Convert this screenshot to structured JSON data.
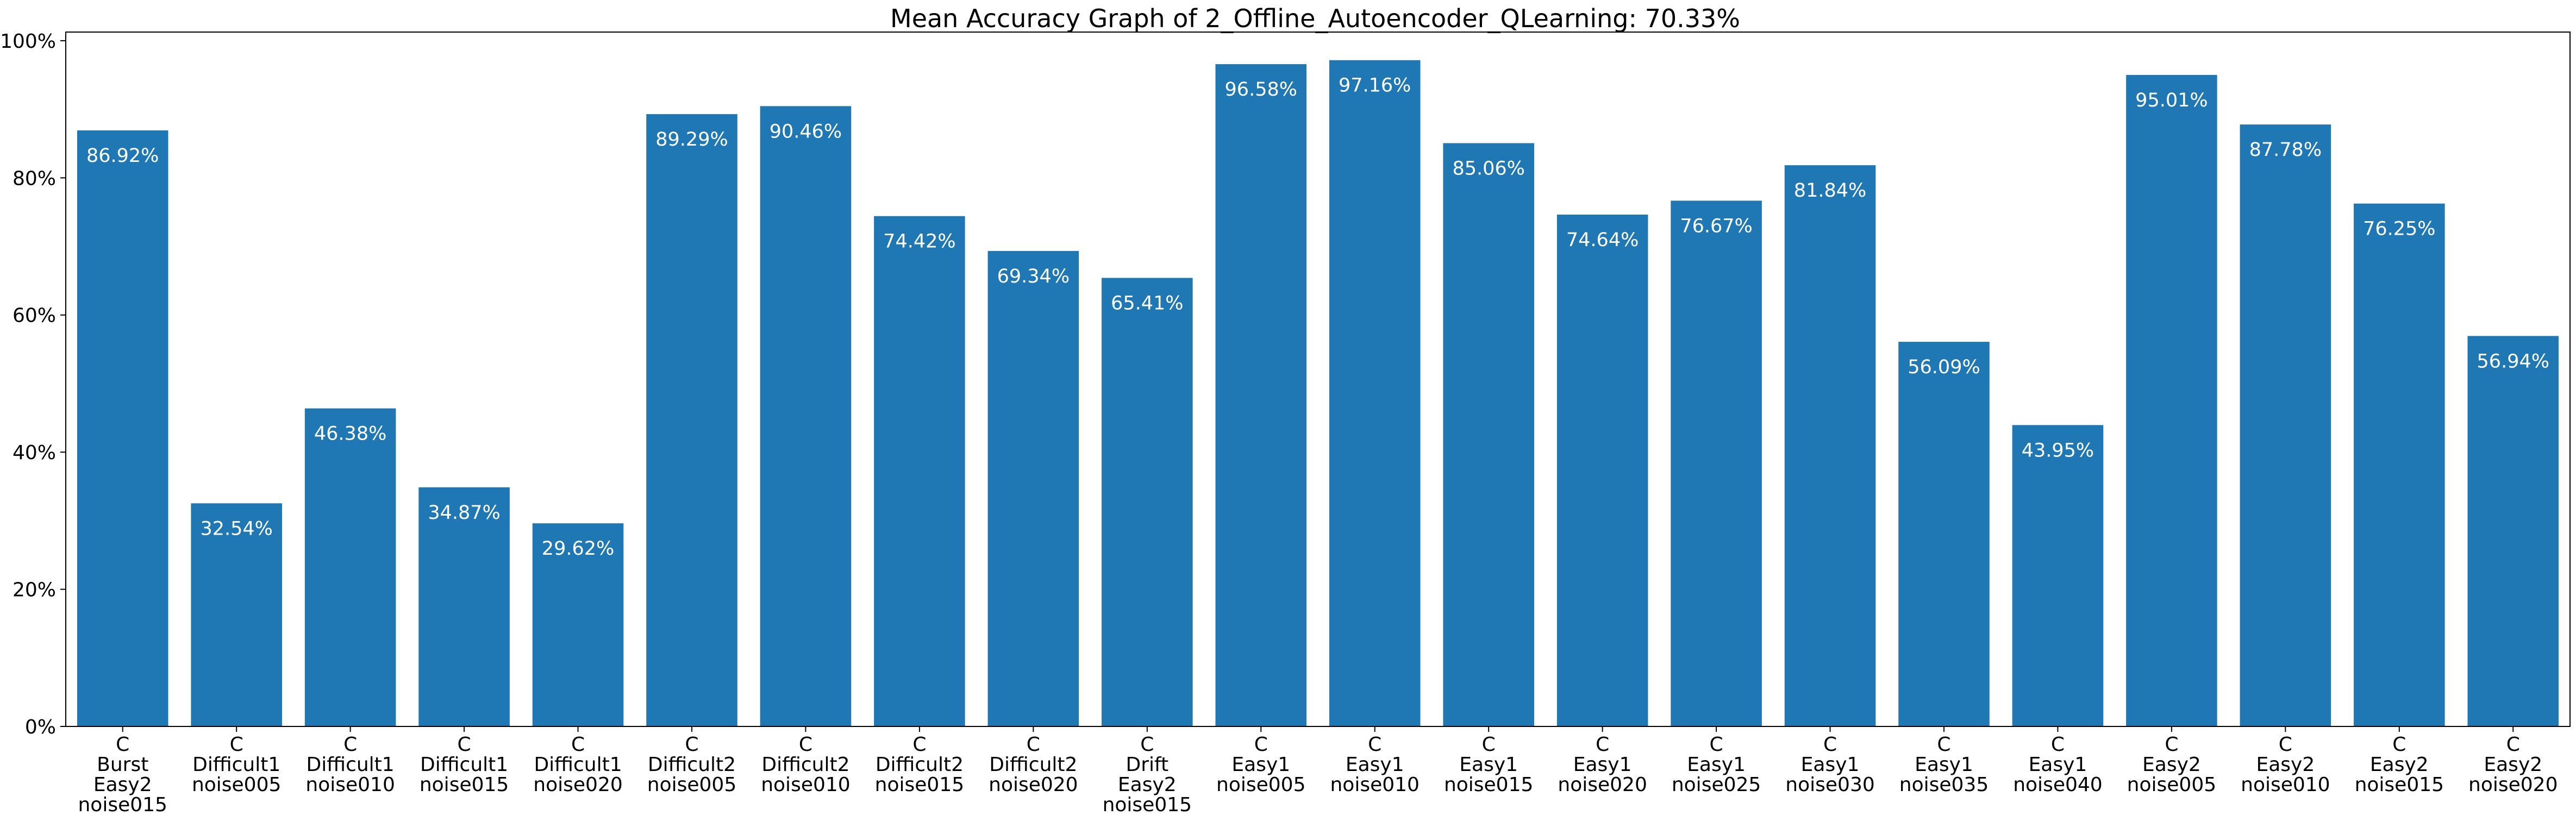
{
  "chart_data": {
    "type": "bar",
    "title": "Mean Accuracy Graph of 2_Offline_Autoencoder_QLearning: 70.33%",
    "xlabel": "",
    "ylabel": "",
    "ylim": [
      0,
      100
    ],
    "yticks": [
      "0%",
      "20%",
      "40%",
      "60%",
      "80%",
      "100%"
    ],
    "ytick_values": [
      0,
      20,
      40,
      60,
      80,
      100
    ],
    "grid": false,
    "bar_color": "#1f77b4",
    "categories": [
      [
        "C",
        "Burst",
        "Easy2",
        "noise015"
      ],
      [
        "C",
        "Difficult1",
        "noise005"
      ],
      [
        "C",
        "Difficult1",
        "noise010"
      ],
      [
        "C",
        "Difficult1",
        "noise015"
      ],
      [
        "C",
        "Difficult1",
        "noise020"
      ],
      [
        "C",
        "Difficult2",
        "noise005"
      ],
      [
        "C",
        "Difficult2",
        "noise010"
      ],
      [
        "C",
        "Difficult2",
        "noise015"
      ],
      [
        "C",
        "Difficult2",
        "noise020"
      ],
      [
        "C",
        "Drift",
        "Easy2",
        "noise015"
      ],
      [
        "C",
        "Easy1",
        "noise005"
      ],
      [
        "C",
        "Easy1",
        "noise010"
      ],
      [
        "C",
        "Easy1",
        "noise015"
      ],
      [
        "C",
        "Easy1",
        "noise020"
      ],
      [
        "C",
        "Easy1",
        "noise025"
      ],
      [
        "C",
        "Easy1",
        "noise030"
      ],
      [
        "C",
        "Easy1",
        "noise035"
      ],
      [
        "C",
        "Easy1",
        "noise040"
      ],
      [
        "C",
        "Easy2",
        "noise005"
      ],
      [
        "C",
        "Easy2",
        "noise010"
      ],
      [
        "C",
        "Easy2",
        "noise015"
      ],
      [
        "C",
        "Easy2",
        "noise020"
      ]
    ],
    "values": [
      86.92,
      32.54,
      46.38,
      34.87,
      29.62,
      89.29,
      90.46,
      74.42,
      69.34,
      65.41,
      96.58,
      97.16,
      85.06,
      74.64,
      76.67,
      81.84,
      56.09,
      43.95,
      95.01,
      87.78,
      76.25,
      56.94
    ],
    "data_labels": [
      "86.92%",
      "32.54%",
      "46.38%",
      "34.87%",
      "29.62%",
      "89.29%",
      "90.46%",
      "74.42%",
      "69.34%",
      "65.41%",
      "96.58%",
      "97.16%",
      "85.06%",
      "74.64%",
      "76.67%",
      "81.84%",
      "56.09%",
      "43.95%",
      "95.01%",
      "87.78%",
      "76.25%",
      "56.94%"
    ]
  }
}
